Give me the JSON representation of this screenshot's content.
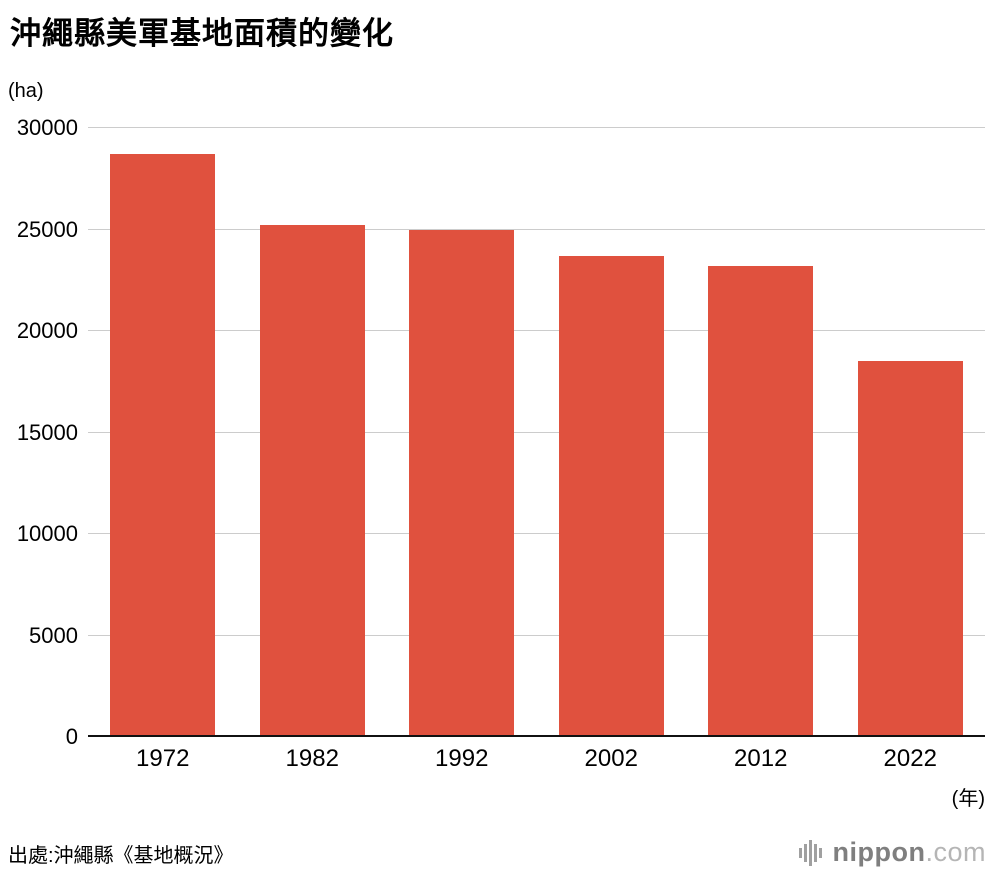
{
  "chart_data": {
    "type": "bar",
    "title": "沖繩縣美軍基地面積的變化",
    "unit_y": "(ha)",
    "unit_x": "(年)",
    "categories": [
      "1972",
      "1982",
      "1992",
      "2002",
      "2012",
      "2022"
    ],
    "values": [
      28700,
      25200,
      25000,
      23700,
      23200,
      18500
    ],
    "ylim": [
      0,
      30000
    ],
    "yticks": [
      0,
      5000,
      10000,
      15000,
      20000,
      25000,
      30000
    ],
    "bar_color": "#e0513e",
    "grid": true,
    "legend": "none"
  },
  "footer": {
    "source": "出處:沖繩縣《基地概況》",
    "logo": {
      "name": "nippon",
      "suffix": ".com"
    }
  }
}
